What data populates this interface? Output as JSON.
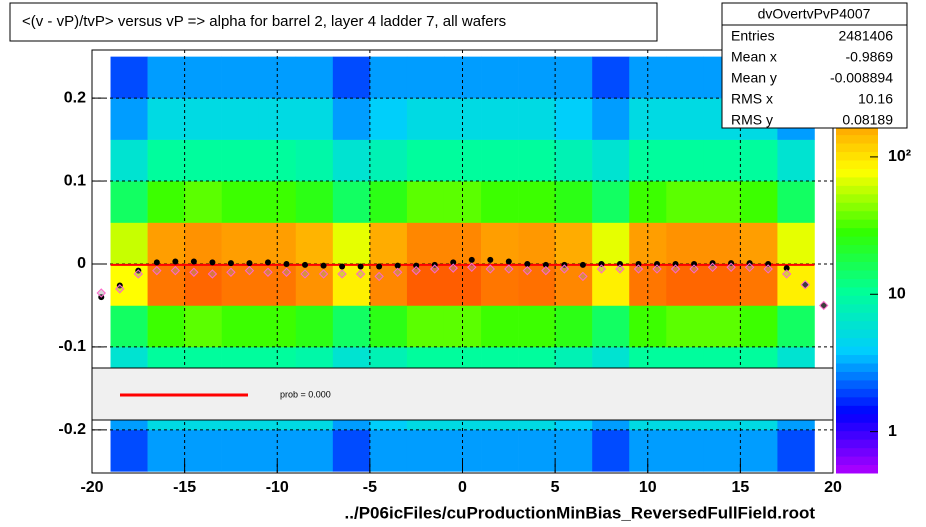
{
  "chart_data": {
    "type": "heatmap",
    "title": "<(v - vP)/tvP> versus   vP => alpha for barrel 2, layer 4 ladder 7, all wafers",
    "xlabel": "../P06icFiles/cuProductionMinBias_ReversedFullField.root",
    "xlim": [
      -20,
      20
    ],
    "ylim": [
      -0.252,
      0.258
    ],
    "xticks": [
      -20,
      -15,
      -10,
      -5,
      0,
      5,
      10,
      15,
      20
    ],
    "yticks": [
      -0.2,
      -0.1,
      0,
      0.1,
      0.2
    ],
    "grid": true,
    "x_bins": [
      -19,
      -17,
      -15,
      -13,
      -11,
      -9,
      -7,
      -5,
      -3,
      -1,
      1,
      3,
      5,
      7,
      9,
      11,
      13,
      15,
      17,
      19
    ],
    "y_bins": [
      -0.25,
      -0.2,
      -0.15,
      -0.1,
      -0.05,
      0,
      0.05,
      0.1,
      0.15,
      0.2,
      0.25
    ],
    "z": [
      [
        2,
        3,
        3,
        3,
        3,
        3,
        2,
        3,
        3,
        3,
        3,
        3,
        3,
        2,
        3,
        3,
        3,
        3,
        2
      ],
      [
        3,
        5,
        5,
        5,
        5,
        5,
        3,
        4,
        5,
        5,
        5,
        5,
        4,
        3,
        5,
        5,
        5,
        5,
        3
      ],
      [
        6,
        10,
        10,
        10,
        10,
        9,
        6,
        8,
        10,
        10,
        10,
        10,
        8,
        6,
        10,
        10,
        10,
        10,
        6
      ],
      [
        15,
        30,
        35,
        30,
        30,
        25,
        15,
        25,
        35,
        35,
        30,
        30,
        25,
        15,
        30,
        35,
        35,
        30,
        15
      ],
      [
        80,
        250,
        280,
        250,
        250,
        200,
        90,
        220,
        300,
        300,
        250,
        260,
        220,
        90,
        250,
        280,
        280,
        250,
        90
      ],
      [
        60,
        180,
        200,
        180,
        180,
        150,
        70,
        160,
        220,
        220,
        180,
        190,
        160,
        70,
        180,
        200,
        200,
        180,
        70
      ],
      [
        15,
        30,
        35,
        30,
        30,
        25,
        15,
        25,
        35,
        35,
        30,
        30,
        25,
        15,
        30,
        35,
        35,
        30,
        15
      ],
      [
        6,
        10,
        10,
        10,
        10,
        9,
        6,
        8,
        10,
        10,
        10,
        10,
        8,
        6,
        10,
        10,
        10,
        10,
        6
      ],
      [
        3,
        5,
        5,
        5,
        5,
        5,
        3,
        4,
        5,
        5,
        5,
        5,
        4,
        3,
        5,
        5,
        5,
        5,
        3
      ],
      [
        2,
        3,
        3,
        3,
        3,
        3,
        2,
        3,
        3,
        3,
        3,
        3,
        3,
        2,
        3,
        3,
        3,
        3,
        2
      ]
    ],
    "zlim": [
      0.5,
      600
    ],
    "zlog": true,
    "zticks": [
      1,
      10,
      {
        "value": 100,
        "label": "10²"
      }
    ],
    "palette": [
      "#b000ff",
      "#0000ff",
      "#00ccff",
      "#00ff99",
      "#33ff00",
      "#ffff00",
      "#ff8800",
      "#ff0000"
    ],
    "profiles": [
      {
        "color": "#000000",
        "marker": "circle",
        "x": [
          -19.5,
          -18.5,
          -17.5,
          -16.5,
          -15.5,
          -14.5,
          -13.5,
          -12.5,
          -11.5,
          -10.5,
          -9.5,
          -8.5,
          -7.5,
          -6.5,
          -5.5,
          -4.5,
          -3.5,
          -2.5,
          -1.5,
          -0.5,
          0.5,
          1.5,
          2.5,
          3.5,
          4.5,
          5.5,
          6.5,
          7.5,
          8.5,
          9.5,
          10.5,
          11.5,
          12.5,
          13.5,
          14.5,
          15.5,
          16.5,
          17.5,
          18.5,
          19.5
        ],
        "values": [
          -0.04,
          -0.026,
          -0.008,
          0.002,
          0.003,
          0.003,
          0.002,
          0.001,
          0.001,
          0.002,
          0,
          -0.001,
          -0.002,
          -0.003,
          -0.003,
          -0.003,
          -0.002,
          -0.002,
          -0.001,
          0.002,
          0.005,
          0.005,
          0.003,
          0,
          -0.001,
          -0.001,
          -0.001,
          0,
          0,
          0,
          0,
          0,
          0,
          0.001,
          0.001,
          0.001,
          0,
          -0.005,
          -0.025,
          -0.05
        ]
      },
      {
        "color": "#ff66cc",
        "marker": "diamond",
        "x": [
          -19.5,
          -18.5,
          -17.5,
          -16.5,
          -15.5,
          -14.5,
          -13.5,
          -12.5,
          -11.5,
          -10.5,
          -9.5,
          -8.5,
          -7.5,
          -6.5,
          -5.5,
          -4.5,
          -3.5,
          -2.5,
          -1.5,
          -0.5,
          0.5,
          1.5,
          2.5,
          3.5,
          4.5,
          5.5,
          6.5,
          7.5,
          8.5,
          9.5,
          10.5,
          11.5,
          12.5,
          13.5,
          14.5,
          15.5,
          16.5,
          17.5,
          18.5,
          19.5
        ],
        "values": [
          -0.035,
          -0.03,
          -0.012,
          -0.008,
          -0.008,
          -0.01,
          -0.012,
          -0.01,
          -0.008,
          -0.01,
          -0.01,
          -0.012,
          -0.012,
          -0.012,
          -0.012,
          -0.015,
          -0.01,
          -0.008,
          -0.006,
          -0.005,
          -0.004,
          -0.006,
          -0.006,
          -0.008,
          -0.008,
          -0.006,
          -0.015,
          -0.006,
          -0.006,
          -0.006,
          -0.006,
          -0.006,
          -0.006,
          -0.004,
          -0.004,
          -0.004,
          -0.006,
          -0.012,
          -0.025,
          -0.05
        ]
      }
    ],
    "fit": {
      "color": "#ff0000",
      "x": [
        -19,
        19
      ],
      "values": [
        -0.001,
        -0.001
      ]
    },
    "legend": {
      "label": "prob = 0.000"
    },
    "stats": {
      "title": "dvOvertvPvP4007",
      "rows": [
        [
          "Entries",
          2481406
        ],
        [
          "Mean x",
          -0.9869
        ],
        [
          "Mean y",
          -0.008894
        ],
        [
          "RMS x",
          10.16
        ],
        [
          "RMS y",
          0.08189
        ]
      ]
    }
  }
}
